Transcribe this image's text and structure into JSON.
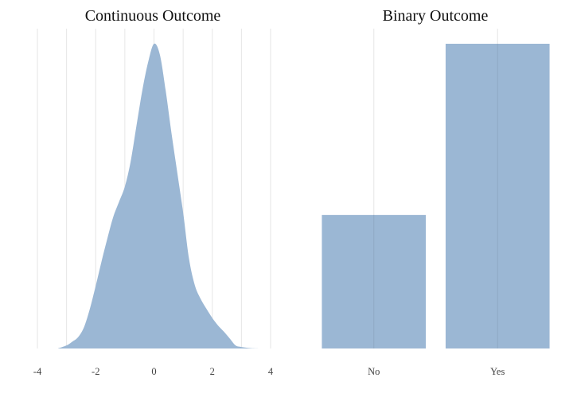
{
  "chart_data": [
    {
      "type": "area",
      "title": "Continuous Outcome",
      "xlabel": "",
      "ylabel": "",
      "xlim": [
        -4,
        4
      ],
      "ylim": [
        0,
        0.4
      ],
      "x_ticks": [
        -4,
        -2,
        0,
        2,
        4
      ],
      "x_tick_labels": [
        "-4",
        "-2",
        "0",
        "2",
        "4"
      ],
      "x_minor_gridlines": [
        -3,
        -1,
        1,
        3
      ],
      "y_axis_labels_shown": false,
      "grid": true,
      "color": "#9bb7d4",
      "density": {
        "x": [
          -3.3,
          -3.0,
          -2.8,
          -2.6,
          -2.4,
          -2.2,
          -2.0,
          -1.8,
          -1.6,
          -1.4,
          -1.2,
          -1.0,
          -0.8,
          -0.6,
          -0.4,
          -0.2,
          0.0,
          0.2,
          0.4,
          0.6,
          0.8,
          1.0,
          1.2,
          1.4,
          1.6,
          1.8,
          2.0,
          2.2,
          2.4,
          2.6,
          2.8,
          3.0,
          3.3,
          3.6
        ],
        "y": [
          0.0,
          0.004,
          0.009,
          0.015,
          0.028,
          0.052,
          0.082,
          0.114,
          0.144,
          0.172,
          0.192,
          0.212,
          0.245,
          0.292,
          0.338,
          0.375,
          0.399,
          0.385,
          0.338,
          0.282,
          0.23,
          0.178,
          0.118,
          0.083,
          0.065,
          0.052,
          0.04,
          0.03,
          0.022,
          0.013,
          0.004,
          0.002,
          0.0005,
          0.0
        ]
      }
    },
    {
      "type": "bar",
      "title": "Binary Outcome",
      "categories": [
        "No",
        "Yes"
      ],
      "values": [
        0.32,
        0.73
      ],
      "xlabel": "",
      "ylabel": "",
      "ylim": [
        0,
        0.73
      ],
      "y_axis_labels_shown": false,
      "grid": true,
      "color": "#9bb7d4"
    }
  ]
}
